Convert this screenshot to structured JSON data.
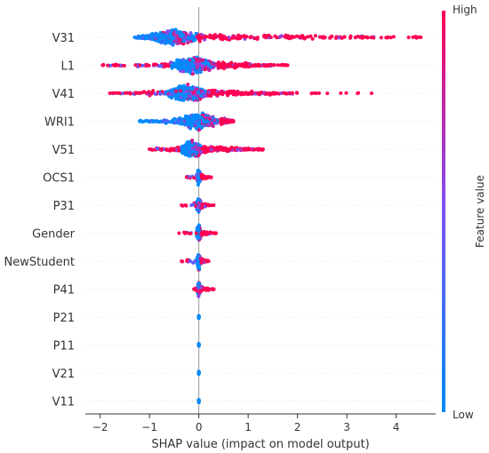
{
  "chart_data": {
    "type": "scatter",
    "subtype": "shap-beeswarm",
    "xlabel": "SHAP value (impact on model output)",
    "xlim": [
      -2.3,
      4.8
    ],
    "xticks": [
      -2,
      -1,
      0,
      1,
      2,
      3,
      4
    ],
    "colorbar": {
      "label": "Feature value",
      "high": "High",
      "low": "Low"
    },
    "colors": {
      "low": "#008afb",
      "high": "#ff0052",
      "zero_line": "#999999",
      "axis": "#333333"
    },
    "features": [
      {
        "name": "V31",
        "min": -1.3,
        "max": 4.5,
        "core": [
          -1.0,
          0.0
        ],
        "tail_right": 3.8
      },
      {
        "name": "L1",
        "min": -1.95,
        "max": 1.8,
        "core": [
          -0.6,
          0.4
        ],
        "tail_right": 1.5
      },
      {
        "name": "V41",
        "min": -1.8,
        "max": 3.5,
        "core": [
          -0.7,
          0.2
        ],
        "tail_right": 1.9
      },
      {
        "name": "WRI1",
        "min": -1.2,
        "max": 0.7,
        "core": [
          -0.4,
          0.45
        ],
        "tail_right": 0.7
      },
      {
        "name": "V51",
        "min": -1.0,
        "max": 1.3,
        "core": [
          -0.4,
          0.1
        ],
        "tail_right": 1.2
      },
      {
        "name": "OCS1",
        "min": -0.25,
        "max": 0.25,
        "core": [
          -0.05,
          0.05
        ],
        "tail_right": 0.2
      },
      {
        "name": "P31",
        "min": -0.35,
        "max": 0.3,
        "core": [
          -0.05,
          0.05
        ],
        "tail_right": 0.2
      },
      {
        "name": "Gender",
        "min": -0.4,
        "max": 0.35,
        "core": [
          -0.05,
          0.05
        ],
        "tail_right": 0.3
      },
      {
        "name": "NewStudent",
        "min": -0.35,
        "max": 0.2,
        "core": [
          -0.05,
          0.05
        ],
        "tail_right": 0.15
      },
      {
        "name": "P41",
        "min": -0.1,
        "max": 0.3,
        "core": [
          -0.03,
          0.03
        ],
        "tail_right": 0.3
      },
      {
        "name": "P21",
        "min": 0.0,
        "max": 0.0,
        "core": [
          0.0,
          0.0
        ],
        "tail_right": 0.0
      },
      {
        "name": "P11",
        "min": 0.0,
        "max": 0.0,
        "core": [
          0.0,
          0.0
        ],
        "tail_right": 0.0
      },
      {
        "name": "V21",
        "min": 0.0,
        "max": 0.0,
        "core": [
          0.0,
          0.0
        ],
        "tail_right": 0.0
      },
      {
        "name": "V11",
        "min": 0.0,
        "max": 0.0,
        "core": [
          0.0,
          0.0
        ],
        "tail_right": 0.0
      }
    ]
  }
}
